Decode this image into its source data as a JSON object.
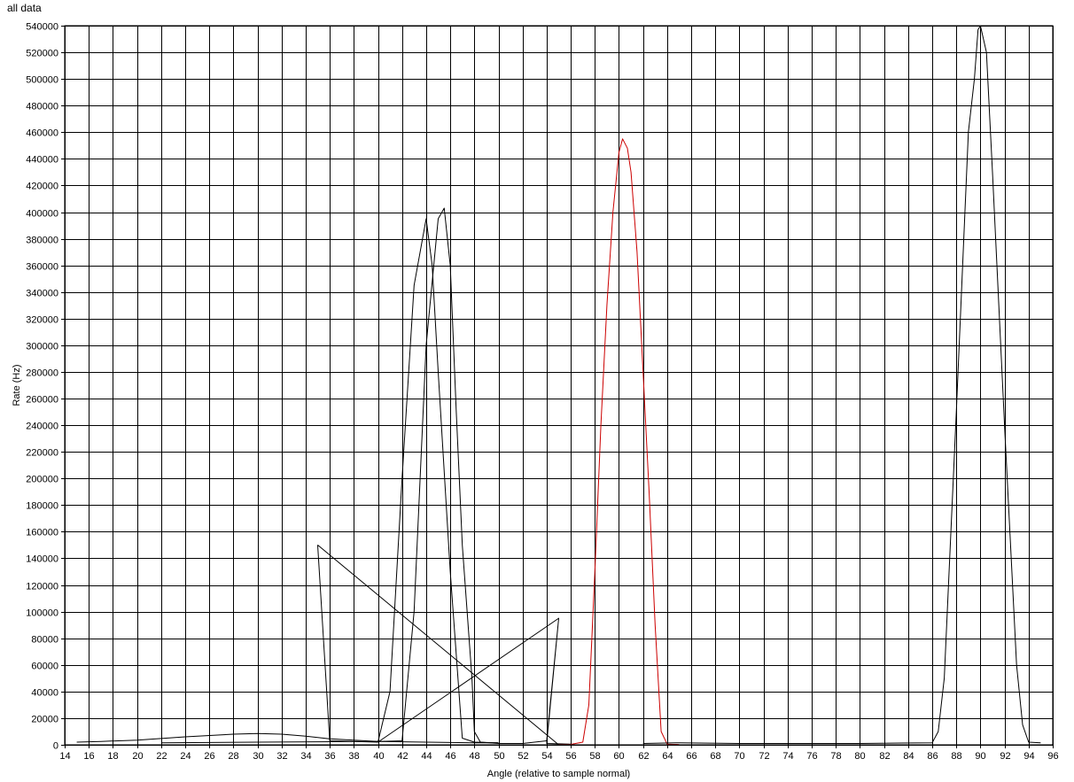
{
  "chart_data": {
    "type": "line",
    "title": "all data",
    "xlabel": "Angle (relative to sample normal)",
    "ylabel": "Rate (Hz)",
    "xlim": [
      14,
      96
    ],
    "ylim": [
      0,
      540000
    ],
    "x_ticks": [
      14,
      16,
      18,
      20,
      22,
      24,
      26,
      28,
      30,
      32,
      34,
      36,
      38,
      40,
      42,
      44,
      46,
      48,
      50,
      52,
      54,
      56,
      58,
      60,
      62,
      64,
      66,
      68,
      70,
      72,
      74,
      76,
      78,
      80,
      82,
      84,
      86,
      88,
      90,
      92,
      94,
      96
    ],
    "y_ticks": [
      0,
      20000,
      40000,
      60000,
      80000,
      100000,
      120000,
      140000,
      160000,
      180000,
      200000,
      220000,
      240000,
      260000,
      280000,
      300000,
      320000,
      340000,
      360000,
      380000,
      400000,
      420000,
      440000,
      460000,
      480000,
      500000,
      520000,
      540000
    ],
    "grid": true,
    "background": "#ffffff",
    "gridline_color": "#000000",
    "series": [
      {
        "color": "#000000",
        "points": [
          [
            15,
            2000
          ],
          [
            17,
            2500
          ],
          [
            20,
            3500
          ],
          [
            24,
            6000
          ],
          [
            28,
            8000
          ],
          [
            30,
            8500
          ],
          [
            32,
            8000
          ],
          [
            34,
            6500
          ],
          [
            36,
            4500
          ],
          [
            40,
            2500
          ],
          [
            44,
            2000
          ],
          [
            48,
            1500
          ],
          [
            50,
            1500
          ]
        ]
      },
      {
        "color": "#000000",
        "points": [
          [
            35,
            150000
          ],
          [
            36,
            3000
          ],
          [
            40,
            2000
          ],
          [
            41,
            40000
          ],
          [
            42,
            200000
          ],
          [
            43,
            345000
          ],
          [
            44,
            395000
          ],
          [
            44.5,
            360000
          ],
          [
            45,
            280000
          ],
          [
            46,
            130000
          ],
          [
            47,
            5000
          ],
          [
            48,
            2000
          ],
          [
            50,
            1500
          ]
        ]
      },
      {
        "color": "#000000",
        "points": [
          [
            35,
            150000
          ],
          [
            55,
            0
          ]
        ]
      },
      {
        "color": "#000000",
        "points": [
          [
            40,
            2000
          ],
          [
            55,
            95000
          ]
        ]
      },
      {
        "color": "#000000",
        "points": [
          [
            22,
            1500
          ],
          [
            30,
            2000
          ],
          [
            40,
            2500
          ],
          [
            42,
            3000
          ],
          [
            43,
            100000
          ],
          [
            44,
            300000
          ],
          [
            45,
            395000
          ],
          [
            45.5,
            403000
          ],
          [
            46,
            360000
          ],
          [
            46.5,
            250000
          ],
          [
            47,
            150000
          ],
          [
            47.8,
            50000
          ],
          [
            48,
            10000
          ],
          [
            48.5,
            2000
          ],
          [
            50,
            1000
          ],
          [
            52,
            1000
          ],
          [
            54,
            3000
          ],
          [
            55,
            95000
          ],
          [
            54,
            1000
          ],
          [
            56,
            500
          ]
        ]
      },
      {
        "color": "#cc0000",
        "points": [
          [
            55,
            200
          ],
          [
            56,
            300
          ],
          [
            57,
            2000
          ],
          [
            57.5,
            30000
          ],
          [
            58,
            130000
          ],
          [
            58.5,
            240000
          ],
          [
            59,
            330000
          ],
          [
            59.5,
            400000
          ],
          [
            60,
            445000
          ],
          [
            60.3,
            455000
          ],
          [
            60.7,
            448000
          ],
          [
            61,
            430000
          ],
          [
            61.5,
            370000
          ],
          [
            62,
            280000
          ],
          [
            62.5,
            190000
          ],
          [
            63,
            90000
          ],
          [
            63.5,
            10000
          ],
          [
            64,
            500
          ],
          [
            65,
            200
          ]
        ]
      },
      {
        "color": "#000000",
        "points": [
          [
            62,
            1000
          ],
          [
            65,
            1500
          ],
          [
            70,
            1000
          ],
          [
            80,
            1000
          ],
          [
            86,
            1500
          ],
          [
            86.5,
            10000
          ],
          [
            87,
            50000
          ],
          [
            88,
            250000
          ],
          [
            89,
            460000
          ],
          [
            89.5,
            500000
          ],
          [
            89.8,
            537000
          ],
          [
            90,
            540000
          ],
          [
            90.5,
            520000
          ],
          [
            91,
            430000
          ],
          [
            92,
            240000
          ],
          [
            93,
            60000
          ],
          [
            93.5,
            15000
          ],
          [
            94,
            2000
          ],
          [
            95,
            1500
          ]
        ]
      }
    ]
  }
}
